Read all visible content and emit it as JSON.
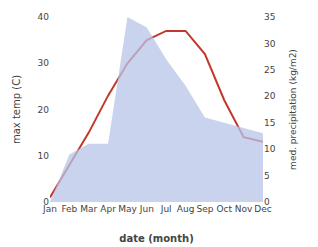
{
  "chart_data": {
    "type": "line",
    "xlabel": "date (month)",
    "ylabel": "max temp (C)",
    "y2label": "med. precipitation (kg/m2)",
    "categories": [
      "Jan",
      "Feb",
      "Mar",
      "Apr",
      "May",
      "Jun",
      "Jul",
      "Aug",
      "Sep",
      "Oct",
      "Nov",
      "Dec"
    ],
    "series": [
      {
        "type": "area",
        "axis": "y2",
        "color": "#b8c4e8",
        "values": [
          0,
          9,
          11,
          11,
          35,
          33,
          27,
          22,
          16,
          15,
          14,
          13
        ]
      },
      {
        "type": "line",
        "axis": "y",
        "color": "#c0392b",
        "values": [
          1,
          8,
          15,
          23,
          30,
          35,
          37,
          37,
          32,
          22,
          14,
          13
        ]
      }
    ],
    "ylim": [
      0,
      40
    ],
    "yticks": [
      0,
      10,
      20,
      30,
      40
    ],
    "y2lim": [
      0,
      35
    ],
    "y2ticks": [
      0,
      5,
      10,
      15,
      20,
      25,
      30,
      35
    ],
    "grid": false
  }
}
